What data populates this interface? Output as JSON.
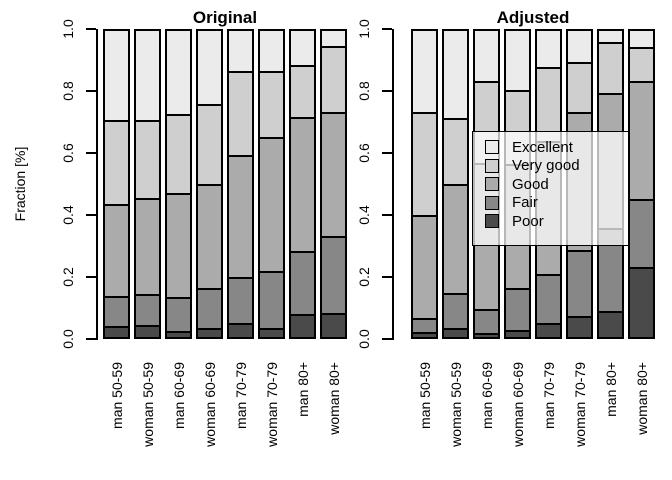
{
  "figure": {
    "ylabel": "Fraction [%]",
    "levels": [
      "Excellent",
      "Very good",
      "Good",
      "Fair",
      "Poor"
    ],
    "colors": {
      "Excellent": "#ebebeb",
      "Very good": "#cfcfcf",
      "Good": "#ababab",
      "Fair": "#878787",
      "Poor": "#4a4a4a"
    },
    "legend": {
      "items": [
        "Excellent",
        "Very good",
        "Good",
        "Fair",
        "Poor"
      ]
    }
  },
  "chart_data": [
    {
      "type": "bar",
      "subtype": "stacked-vertical",
      "title": "Original",
      "ylabel": "Fraction [%]",
      "ylim": [
        0,
        1
      ],
      "yticks": [
        0.0,
        0.2,
        0.4,
        0.6,
        0.8,
        1.0
      ],
      "grid": false,
      "categories": [
        "man 50-59",
        "woman 50-59",
        "man 60-69",
        "woman 60-69",
        "man 70-79",
        "woman 70-79",
        "man 80+",
        "woman 80+"
      ],
      "series": [
        {
          "name": "Poor",
          "values": [
            0.035,
            0.04,
            0.02,
            0.03,
            0.046,
            0.03,
            0.075,
            0.08
          ]
        },
        {
          "name": "Fair",
          "values": [
            0.1,
            0.1,
            0.11,
            0.13,
            0.15,
            0.185,
            0.205,
            0.25
          ]
        },
        {
          "name": "Good",
          "values": [
            0.3,
            0.315,
            0.34,
            0.34,
            0.4,
            0.44,
            0.44,
            0.405
          ]
        },
        {
          "name": "Very good",
          "values": [
            0.275,
            0.255,
            0.26,
            0.26,
            0.274,
            0.215,
            0.17,
            0.215
          ]
        },
        {
          "name": "Excellent",
          "values": [
            0.29,
            0.29,
            0.27,
            0.24,
            0.13,
            0.13,
            0.11,
            0.05
          ]
        }
      ]
    },
    {
      "type": "bar",
      "subtype": "stacked-vertical",
      "title": "Adjusted",
      "ylabel": "Fraction [%]",
      "ylim": [
        0,
        1
      ],
      "yticks": [
        0.0,
        0.2,
        0.4,
        0.6,
        0.8,
        1.0
      ],
      "grid": false,
      "categories": [
        "man 50-59",
        "woman 50-59",
        "man 60-69",
        "woman 60-69",
        "man 70-79",
        "woman 70-79",
        "man 80+",
        "woman 80+"
      ],
      "series": [
        {
          "name": "Poor",
          "values": [
            0.016,
            0.028,
            0.012,
            0.024,
            0.046,
            0.07,
            0.084,
            0.23
          ]
        },
        {
          "name": "Fair",
          "values": [
            0.046,
            0.115,
            0.079,
            0.135,
            0.161,
            0.215,
            0.273,
            0.22
          ]
        },
        {
          "name": "Good",
          "values": [
            0.338,
            0.357,
            0.479,
            0.406,
            0.433,
            0.45,
            0.44,
            0.387
          ]
        },
        {
          "name": "Very good",
          "values": [
            0.335,
            0.217,
            0.265,
            0.241,
            0.243,
            0.164,
            0.166,
            0.11
          ]
        },
        {
          "name": "Excellent",
          "values": [
            0.265,
            0.283,
            0.165,
            0.194,
            0.117,
            0.101,
            0.037,
            0.053
          ]
        }
      ]
    }
  ]
}
